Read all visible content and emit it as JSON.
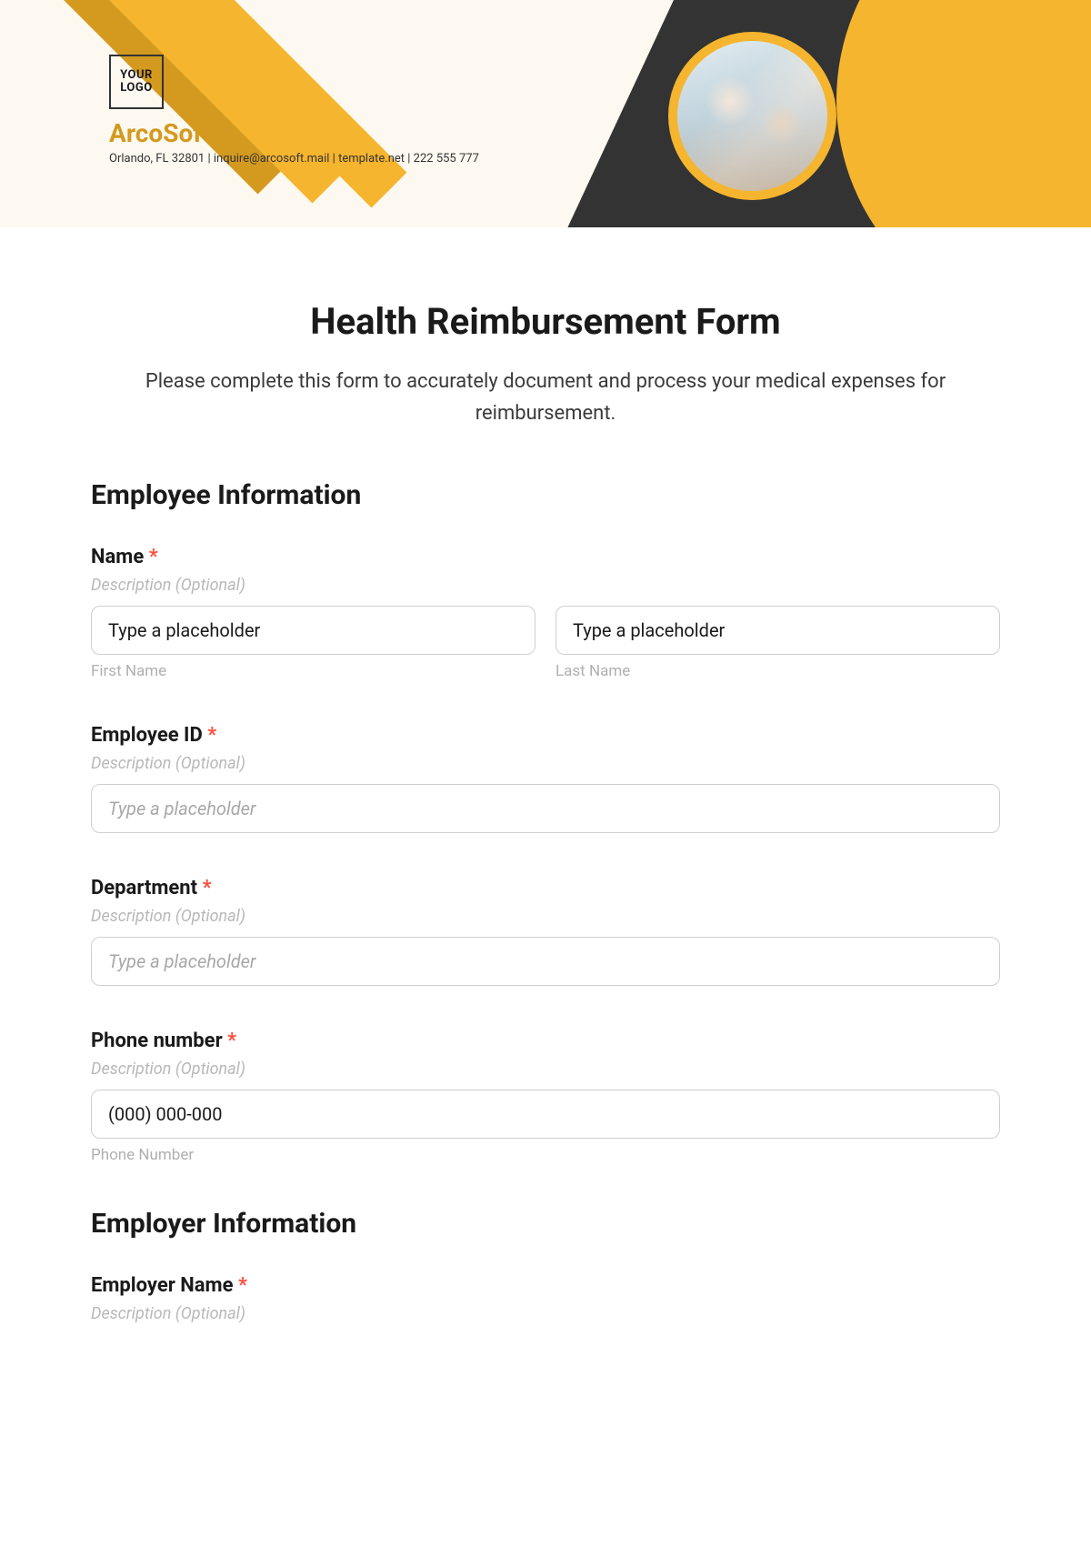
{
  "header": {
    "logo_text_line1": "YOUR",
    "logo_text_line2": "LOGO",
    "company_name": "ArcoSoft",
    "company_info": "Orlando, FL 32801 | inquire@arcosoft.mail | template.net | 222 555 777",
    "colors": {
      "banner_bg": "#fdf9f0",
      "stripe_dark": "#d49a1f",
      "stripe_light": "#f6b52e",
      "dark_shape": "#333333",
      "accent_yellow": "#f6b52e"
    }
  },
  "form": {
    "title": "Health Reimbursement Form",
    "intro": "Please complete this form to accurately document and process your medical expenses for reimbursement.",
    "required_marker": "*",
    "desc_placeholder": "Description (Optional)",
    "input_placeholder": "Type a placeholder",
    "sections": {
      "employee": {
        "heading": "Employee Information",
        "fields": {
          "name": {
            "label": "Name",
            "first_sub": "First Name",
            "last_sub": "Last Name"
          },
          "employee_id": {
            "label": "Employee ID"
          },
          "department": {
            "label": "Department"
          },
          "phone": {
            "label": "Phone number",
            "value": "(000) 000-000",
            "sub": "Phone Number"
          }
        }
      },
      "employer": {
        "heading": "Employer Information",
        "fields": {
          "employer_name": {
            "label": "Employer Name"
          }
        }
      }
    }
  }
}
